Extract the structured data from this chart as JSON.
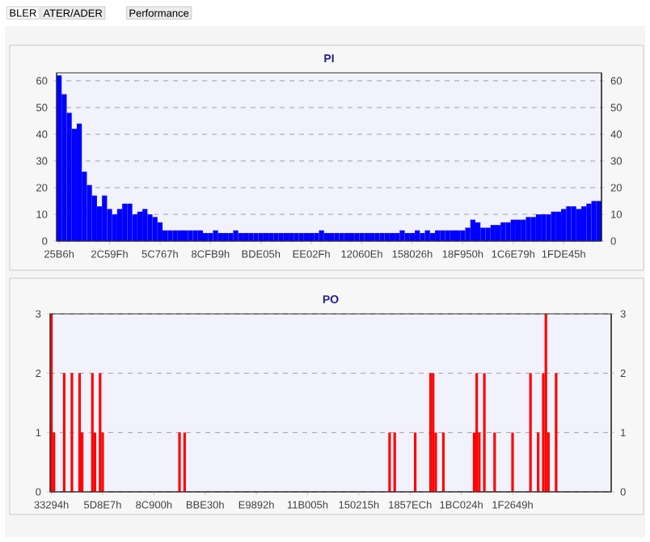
{
  "chart_data": [
    {
      "type": "bar",
      "title": "PI",
      "annotations": [
        "BLER",
        "ATER/ADER",
        "Performance"
      ],
      "grid": "y",
      "categories": [
        "25B6h",
        null,
        null,
        null,
        null,
        null,
        null,
        null,
        null,
        null,
        "2C59Fh",
        null,
        null,
        null,
        null,
        null,
        null,
        null,
        null,
        null,
        "5C767h",
        null,
        null,
        null,
        null,
        null,
        null,
        null,
        null,
        null,
        "8CFB9h",
        null,
        null,
        null,
        null,
        null,
        null,
        null,
        null,
        null,
        "BDE05h",
        null,
        null,
        null,
        null,
        null,
        null,
        null,
        null,
        null,
        "EE02Fh",
        null,
        null,
        null,
        null,
        null,
        null,
        null,
        null,
        null,
        "12060Eh",
        null,
        null,
        null,
        null,
        null,
        null,
        null,
        null,
        null,
        "158026h",
        null,
        null,
        null,
        null,
        null,
        null,
        null,
        null,
        null,
        "18F950h",
        null,
        null,
        null,
        null,
        null,
        null,
        null,
        null,
        null,
        "1C6E79h",
        null,
        null,
        null,
        null,
        null,
        null,
        null,
        null,
        null,
        "1FDE45h",
        null,
        null,
        null,
        null,
        null,
        null,
        null
      ],
      "series": [
        {
          "color": "#0000ff",
          "values": [
            62,
            55,
            48,
            42,
            44,
            26,
            21,
            17,
            13,
            17,
            12,
            10,
            12,
            14,
            14,
            10,
            11,
            12,
            10,
            9,
            7,
            4,
            4,
            4,
            4,
            4,
            4,
            4,
            4,
            3,
            3,
            4,
            3,
            3,
            3,
            4,
            3,
            3,
            3,
            3,
            3,
            3,
            3,
            3,
            3,
            3,
            3,
            3,
            3,
            3,
            3,
            3,
            4,
            3,
            3,
            3,
            3,
            3,
            3,
            3,
            3,
            3,
            3,
            3,
            3,
            3,
            3,
            3,
            4,
            3,
            3,
            4,
            3,
            4,
            3,
            4,
            4,
            4,
            4,
            4,
            4,
            5,
            8,
            7,
            5,
            5,
            6,
            6,
            7,
            7,
            8,
            8,
            8,
            9,
            9,
            10,
            10,
            10,
            11,
            11,
            12,
            13,
            13,
            12,
            13,
            14,
            15,
            15
          ]
        }
      ],
      "ylim": [
        0,
        63
      ],
      "yticks": [
        0,
        10,
        20,
        30,
        40,
        50,
        60
      ],
      "y2lim": [
        0,
        63
      ],
      "y2ticks": [
        0,
        10,
        20,
        30,
        40,
        50,
        60
      ]
    },
    {
      "type": "bar",
      "title": "PO",
      "grid": "y",
      "categories": [
        "33294h",
        null,
        null,
        null,
        null,
        null,
        null,
        null,
        null,
        null,
        null,
        null,
        null,
        null,
        null,
        null,
        null,
        null,
        null,
        null,
        "5D8E7h",
        null,
        null,
        null,
        null,
        null,
        null,
        null,
        null,
        null,
        null,
        null,
        null,
        null,
        null,
        null,
        null,
        null,
        null,
        null,
        "8C900h",
        null,
        null,
        null,
        null,
        null,
        null,
        null,
        null,
        null,
        null,
        null,
        null,
        null,
        null,
        null,
        null,
        null,
        null,
        null,
        "BBE30h",
        null,
        null,
        null,
        null,
        null,
        null,
        null,
        null,
        null,
        null,
        null,
        null,
        null,
        null,
        null,
        null,
        null,
        null,
        null,
        "E9892h",
        null,
        null,
        null,
        null,
        null,
        null,
        null,
        null,
        null,
        null,
        null,
        null,
        null,
        null,
        null,
        null,
        null,
        null,
        null,
        "11B005h",
        null,
        null,
        null,
        null,
        null,
        null,
        null,
        null,
        null,
        null,
        null,
        null,
        null,
        null,
        null,
        null,
        null,
        null,
        null,
        "150215h",
        null,
        null,
        null,
        null,
        null,
        null,
        null,
        null,
        null,
        null,
        null,
        null,
        null,
        null,
        null,
        null,
        null,
        null,
        null,
        "1857ECh",
        null,
        null,
        null,
        null,
        null,
        null,
        null,
        null,
        null,
        null,
        null,
        null,
        null,
        null,
        null,
        null,
        null,
        null,
        null,
        "1BC024h",
        null,
        null,
        null,
        null,
        null,
        null,
        null,
        null,
        null,
        null,
        null,
        null,
        null,
        null,
        null,
        null,
        null,
        null,
        null,
        "1F2649h",
        null,
        null,
        null,
        null,
        null,
        null,
        null,
        null,
        null,
        null,
        null,
        null,
        null,
        null,
        null,
        null,
        null,
        null,
        null,
        null,
        null,
        null,
        null,
        null,
        null,
        null,
        null,
        null,
        null,
        null,
        null,
        null,
        null,
        null,
        null,
        null,
        null,
        null
      ],
      "series": [
        {
          "color": "#ff0000",
          "values": [
            3,
            1,
            0,
            0,
            0,
            2,
            0,
            0,
            2,
            0,
            0,
            2,
            1,
            0,
            0,
            0,
            2,
            1,
            0,
            2,
            1,
            0,
            0,
            0,
            0,
            0,
            0,
            0,
            0,
            0,
            0,
            0,
            0,
            0,
            0,
            0,
            0,
            0,
            0,
            0,
            0,
            0,
            0,
            0,
            0,
            0,
            0,
            0,
            0,
            0,
            1,
            0,
            1,
            0,
            0,
            0,
            0,
            0,
            0,
            0,
            0,
            0,
            0,
            0,
            0,
            0,
            0,
            0,
            0,
            0,
            0,
            0,
            0,
            0,
            0,
            0,
            0,
            0,
            0,
            0,
            0,
            0,
            0,
            0,
            0,
            0,
            0,
            0,
            0,
            0,
            0,
            0,
            0,
            0,
            0,
            0,
            0,
            0,
            0,
            0,
            0,
            0,
            0,
            0,
            0,
            0,
            0,
            0,
            0,
            0,
            0,
            0,
            0,
            0,
            0,
            0,
            0,
            0,
            0,
            0,
            0,
            0,
            0,
            0,
            0,
            0,
            0,
            0,
            0,
            0,
            0,
            0,
            1,
            0,
            1,
            0,
            0,
            0,
            0,
            0,
            0,
            0,
            1,
            0,
            0,
            0,
            0,
            0,
            2,
            2,
            1,
            0,
            0,
            1,
            0,
            0,
            0,
            0,
            0,
            0,
            0,
            0,
            0,
            0,
            0,
            1,
            2,
            1,
            0,
            2,
            0,
            0,
            0,
            1,
            0,
            0,
            0,
            0,
            0,
            0,
            1,
            0,
            0,
            0,
            0,
            0,
            0,
            2,
            0,
            0,
            1,
            0,
            2,
            3,
            1,
            0,
            0,
            2,
            0,
            0,
            0,
            0,
            0,
            0,
            0,
            0,
            0,
            0,
            0,
            0,
            0,
            0,
            0,
            0,
            0,
            0,
            0,
            0,
            0
          ]
        }
      ],
      "ylim": [
        0,
        3
      ],
      "yticks": [
        0,
        1,
        2,
        3
      ],
      "y2lim": [
        0,
        3
      ],
      "y2ticks": [
        0,
        1,
        2,
        3
      ]
    }
  ]
}
